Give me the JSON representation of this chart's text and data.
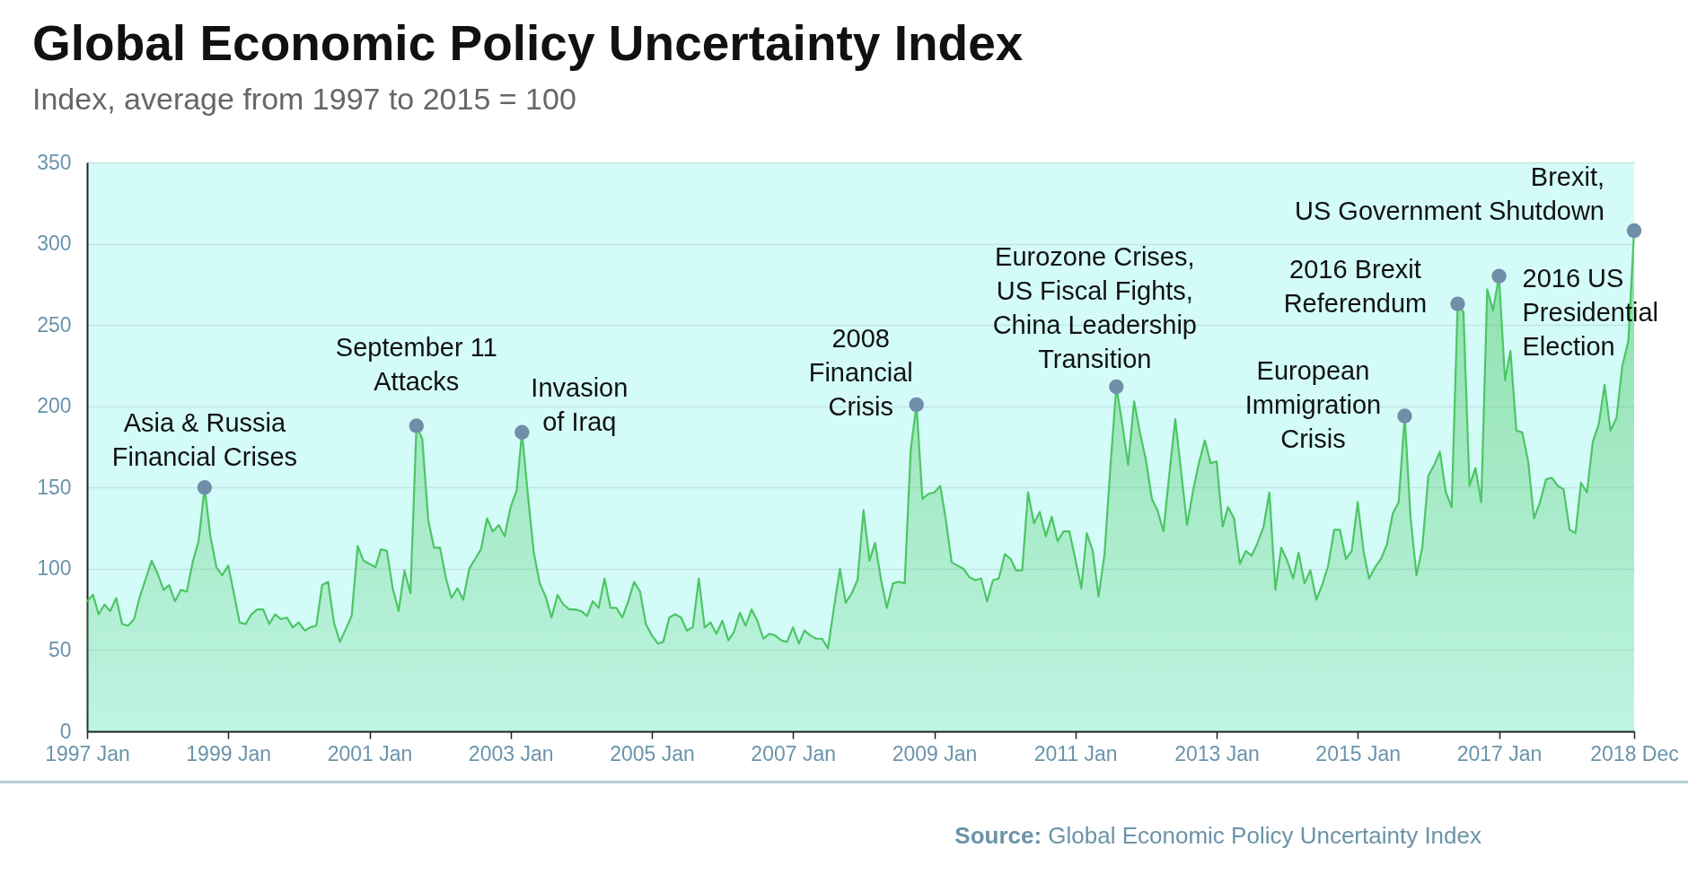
{
  "chart_data": {
    "type": "area",
    "title": "Global Economic Policy Uncertainty Index",
    "subtitle": "Index, average from 1997 to 2015 = 100",
    "color": "#4cc663",
    "grid": "y",
    "xlim": [
      "1997-01",
      "2018-12"
    ],
    "xticks": [
      {
        "value": "1997-01",
        "label": "1997 Jan"
      },
      {
        "value": "1999-01",
        "label": "1999 Jan"
      },
      {
        "value": "2001-01",
        "label": "2001 Jan"
      },
      {
        "value": "2003-01",
        "label": "2003 Jan"
      },
      {
        "value": "2005-01",
        "label": "2005 Jan"
      },
      {
        "value": "2007-01",
        "label": "2007 Jan"
      },
      {
        "value": "2009-01",
        "label": "2009 Jan"
      },
      {
        "value": "2011-01",
        "label": "2011 Jan"
      },
      {
        "value": "2013-01",
        "label": "2013 Jan"
      },
      {
        "value": "2015-01",
        "label": "2015 Jan"
      },
      {
        "value": "2017-01",
        "label": "2017 Jan"
      },
      {
        "value": "2018-12",
        "label": "2018 Dec"
      }
    ],
    "ylim": [
      0,
      350
    ],
    "yticks": [
      0,
      50,
      100,
      150,
      200,
      250,
      300,
      350
    ],
    "x": [
      "1997-01",
      "1997-02",
      "1997-03",
      "1997-04",
      "1997-05",
      "1997-06",
      "1997-07",
      "1997-08",
      "1997-09",
      "1997-10",
      "1997-11",
      "1997-12",
      "1998-01",
      "1998-02",
      "1998-03",
      "1998-04",
      "1998-05",
      "1998-06",
      "1998-07",
      "1998-08",
      "1998-09",
      "1998-10",
      "1998-11",
      "1998-12",
      "1999-01",
      "1999-02",
      "1999-03",
      "1999-04",
      "1999-05",
      "1999-06",
      "1999-07",
      "1999-08",
      "1999-09",
      "1999-10",
      "1999-11",
      "1999-12",
      "2000-01",
      "2000-02",
      "2000-03",
      "2000-04",
      "2000-05",
      "2000-06",
      "2000-07",
      "2000-08",
      "2000-09",
      "2000-10",
      "2000-11",
      "2000-12",
      "2001-01",
      "2001-02",
      "2001-03",
      "2001-04",
      "2001-05",
      "2001-06",
      "2001-07",
      "2001-08",
      "2001-09",
      "2001-10",
      "2001-11",
      "2001-12",
      "2002-01",
      "2002-02",
      "2002-03",
      "2002-04",
      "2002-05",
      "2002-06",
      "2002-07",
      "2002-08",
      "2002-09",
      "2002-10",
      "2002-11",
      "2002-12",
      "2003-01",
      "2003-02",
      "2003-03",
      "2003-04",
      "2003-05",
      "2003-06",
      "2003-07",
      "2003-08",
      "2003-09",
      "2003-10",
      "2003-11",
      "2003-12",
      "2004-01",
      "2004-02",
      "2004-03",
      "2004-04",
      "2004-05",
      "2004-06",
      "2004-07",
      "2004-08",
      "2004-09",
      "2004-10",
      "2004-11",
      "2004-12",
      "2005-01",
      "2005-02",
      "2005-03",
      "2005-04",
      "2005-05",
      "2005-06",
      "2005-07",
      "2005-08",
      "2005-09",
      "2005-10",
      "2005-11",
      "2005-12",
      "2006-01",
      "2006-02",
      "2006-03",
      "2006-04",
      "2006-05",
      "2006-06",
      "2006-07",
      "2006-08",
      "2006-09",
      "2006-10",
      "2006-11",
      "2006-12",
      "2007-01",
      "2007-02",
      "2007-03",
      "2007-04",
      "2007-05",
      "2007-06",
      "2007-07",
      "2007-08",
      "2007-09",
      "2007-10",
      "2007-11",
      "2007-12",
      "2008-01",
      "2008-02",
      "2008-03",
      "2008-04",
      "2008-05",
      "2008-06",
      "2008-07",
      "2008-08",
      "2008-09",
      "2008-10",
      "2008-11",
      "2008-12",
      "2009-01",
      "2009-02",
      "2009-03",
      "2009-04",
      "2009-05",
      "2009-06",
      "2009-07",
      "2009-08",
      "2009-09",
      "2009-10",
      "2009-11",
      "2009-12",
      "2010-01",
      "2010-02",
      "2010-03",
      "2010-04",
      "2010-05",
      "2010-06",
      "2010-07",
      "2010-08",
      "2010-09",
      "2010-10",
      "2010-11",
      "2010-12",
      "2011-01",
      "2011-02",
      "2011-03",
      "2011-04",
      "2011-05",
      "2011-06",
      "2011-07",
      "2011-08",
      "2011-09",
      "2011-10",
      "2011-11",
      "2011-12",
      "2012-01",
      "2012-02",
      "2012-03",
      "2012-04",
      "2012-05",
      "2012-06",
      "2012-07",
      "2012-08",
      "2012-09",
      "2012-10",
      "2012-11",
      "2012-12",
      "2013-01",
      "2013-02",
      "2013-03",
      "2013-04",
      "2013-05",
      "2013-06",
      "2013-07",
      "2013-08",
      "2013-09",
      "2013-10",
      "2013-11",
      "2013-12",
      "2014-01",
      "2014-02",
      "2014-03",
      "2014-04",
      "2014-05",
      "2014-06",
      "2014-07",
      "2014-08",
      "2014-09",
      "2014-10",
      "2014-11",
      "2014-12",
      "2015-01",
      "2015-02",
      "2015-03",
      "2015-04",
      "2015-05",
      "2015-06",
      "2015-07",
      "2015-08",
      "2015-09",
      "2015-10",
      "2015-11",
      "2015-12",
      "2016-01",
      "2016-02",
      "2016-03",
      "2016-04",
      "2016-05",
      "2016-06",
      "2016-07",
      "2016-08",
      "2016-09",
      "2016-10",
      "2016-11",
      "2016-12",
      "2017-01",
      "2017-02",
      "2017-03",
      "2017-04",
      "2017-05",
      "2017-06",
      "2017-07",
      "2017-08",
      "2017-09",
      "2017-10",
      "2017-11",
      "2017-12",
      "2018-01",
      "2018-02",
      "2018-03",
      "2018-04",
      "2018-05",
      "2018-06",
      "2018-07",
      "2018-08",
      "2018-09",
      "2018-10",
      "2018-11",
      "2018-12"
    ],
    "values": [
      80,
      84,
      72,
      78,
      74,
      82,
      66,
      65,
      69,
      83,
      94,
      105,
      97,
      87,
      90,
      80,
      87,
      86,
      104,
      117,
      150,
      120,
      101,
      96,
      102,
      84,
      67,
      66,
      72,
      75,
      75,
      66,
      72,
      69,
      70,
      64,
      67,
      62,
      64,
      65,
      90,
      92,
      67,
      55,
      63,
      71,
      114,
      105,
      103,
      101,
      112,
      111,
      88,
      74,
      99,
      85,
      188,
      180,
      130,
      113,
      113,
      94,
      82,
      88,
      81,
      100,
      106,
      112,
      131,
      123,
      127,
      120,
      138,
      148,
      184,
      145,
      110,
      91,
      83,
      70,
      84,
      78,
      75,
      75,
      74,
      71,
      80,
      76,
      94,
      76,
      76,
      70,
      80,
      92,
      86,
      66,
      59,
      54,
      55,
      70,
      72,
      70,
      62,
      64,
      94,
      64,
      67,
      60,
      68,
      56,
      61,
      73,
      65,
      75,
      68,
      57,
      60,
      59,
      56,
      55,
      64,
      54,
      62,
      59,
      57,
      57,
      51,
      76,
      100,
      79,
      85,
      93,
      136,
      105,
      116,
      93,
      76,
      91,
      92,
      91,
      173,
      201,
      143,
      146,
      147,
      151,
      131,
      104,
      102,
      100,
      95,
      93,
      94,
      80,
      93,
      94,
      109,
      106,
      99,
      99,
      147,
      128,
      135,
      120,
      132,
      117,
      123,
      123,
      106,
      88,
      122,
      111,
      83,
      109,
      162,
      212,
      189,
      164,
      203,
      184,
      167,
      143,
      136,
      123,
      158,
      192,
      160,
      127,
      148,
      165,
      179,
      165,
      166,
      126,
      138,
      131,
      103,
      111,
      108,
      116,
      126,
      147,
      87,
      113,
      105,
      94,
      110,
      91,
      99,
      81,
      90,
      102,
      124,
      124,
      106,
      111,
      141,
      110,
      94,
      101,
      106,
      115,
      134,
      141,
      194,
      132,
      96,
      113,
      157,
      164,
      172,
      147,
      138,
      263,
      258,
      151,
      162,
      141,
      272,
      259,
      280,
      216,
      234,
      185,
      184,
      166,
      131,
      141,
      155,
      156,
      151,
      149,
      124,
      122,
      153,
      147,
      178,
      189,
      213,
      185,
      193,
      225,
      240,
      308
    ],
    "annotations": [
      {
        "text": "Asia & Russia\nFinancial Crises",
        "x": "1998-09",
        "y": 150
      },
      {
        "text": "September 11\nAttacks",
        "x": "2001-09",
        "y": 188
      },
      {
        "text": "Invasion\nof Iraq",
        "x": "2003-03",
        "y": 184
      },
      {
        "text": "2008\nFinancial\nCrisis",
        "x": "2008-10",
        "y": 201
      },
      {
        "text": "Eurozone Crises,\nUS Fiscal Fights,\nChina Leadership\nTransition",
        "x": "2011-08",
        "y": 212
      },
      {
        "text": "European\nImmigration\nCrisis",
        "x": "2015-09",
        "y": 194
      },
      {
        "text": "2016 Brexit\nReferendum",
        "x": "2016-06",
        "y": 263
      },
      {
        "text": "2016 US\nPresidential\nElection",
        "x": "2017-01",
        "y": 280
      },
      {
        "text": "Brexit,\nUS Government Shutdown",
        "x": "2018-12",
        "y": 308
      },
      "Source: Global Economic Policy Uncertainty Index"
    ]
  }
}
